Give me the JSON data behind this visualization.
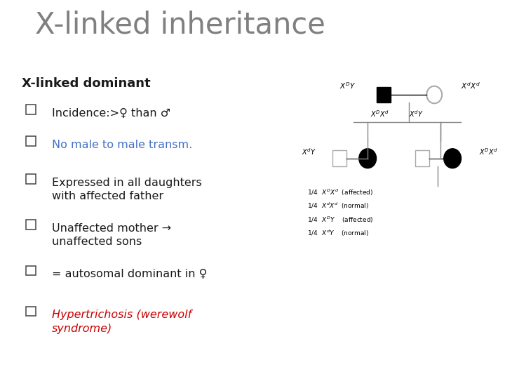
{
  "title": "X-linked inheritance",
  "title_color": "#808080",
  "title_fontsize": 30,
  "pink_bar_color": "#E0007A",
  "dark_bar_color": "#8B004A",
  "subtitle": "X-linked dominant",
  "subtitle_fontsize": 13,
  "bullet_color_default": "#1a1a1a",
  "bullet_color_blue": "#4472C4",
  "bullet_color_red": "#CC0000",
  "bullets": [
    {
      "text": "Incidence:>♀ than ♂",
      "color": "#1a1a1a",
      "italic": false
    },
    {
      "text": "No male to male transm.",
      "color": "#4472C4",
      "italic": false
    },
    {
      "text": "Expressed in all daughters\nwith affected father",
      "color": "#1a1a1a",
      "italic": false
    },
    {
      "text": "Unaffected mother →\nunaffected sons",
      "color": "#1a1a1a",
      "italic": false
    },
    {
      "text": "= autosomal dominant in ♀",
      "color": "#1a1a1a",
      "italic": false
    },
    {
      "text": "Hypertrichosis (werewolf\nsyndrome)",
      "color": "#CC0000",
      "italic": true
    }
  ],
  "bg_color": "#ffffff"
}
